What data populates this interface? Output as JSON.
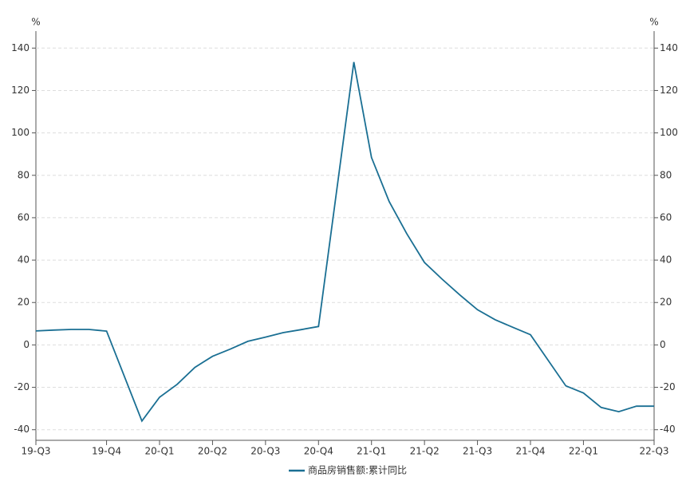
{
  "chart_data": {
    "type": "line",
    "y_label": "%",
    "y2_label": "%",
    "x": [
      0,
      1,
      2,
      3,
      4,
      6,
      7,
      8,
      9,
      10,
      11,
      12,
      13,
      14,
      15,
      16,
      18,
      19,
      20,
      21,
      22,
      23,
      24,
      25,
      26,
      27,
      28,
      30,
      31,
      32,
      33,
      34,
      35
    ],
    "series": [
      {
        "name": "商品房销售额:累计同比",
        "color": "#1a6f93",
        "values": [
          6.6,
          7.0,
          7.3,
          7.3,
          6.5,
          -35.9,
          -24.7,
          -18.6,
          -10.6,
          -5.4,
          -2.0,
          1.7,
          3.7,
          5.8,
          7.2,
          8.7,
          133.4,
          88.4,
          67.6,
          52.4,
          38.9,
          31.0,
          23.6,
          16.6,
          11.9,
          8.3,
          4.8,
          -19.3,
          -22.7,
          -29.5,
          -31.5,
          -28.9,
          -28.9
        ]
      }
    ],
    "xlim": [
      0,
      35
    ],
    "xticks": [
      {
        "value": 0,
        "label": "19-Q3"
      },
      {
        "value": 4,
        "label": "19-Q4"
      },
      {
        "value": 7,
        "label": "20-Q1"
      },
      {
        "value": 10,
        "label": "20-Q2"
      },
      {
        "value": 13,
        "label": "20-Q3"
      },
      {
        "value": 16,
        "label": "20-Q4"
      },
      {
        "value": 19,
        "label": "21-Q1"
      },
      {
        "value": 22,
        "label": "21-Q2"
      },
      {
        "value": 25,
        "label": "21-Q3"
      },
      {
        "value": 28,
        "label": "21-Q4"
      },
      {
        "value": 31,
        "label": "22-Q1"
      },
      {
        "value": 35,
        "label": "22-Q3"
      }
    ],
    "ylim": [
      -45,
      145
    ],
    "yticks": [
      -40,
      -20,
      0,
      20,
      40,
      60,
      80,
      100,
      120,
      140
    ],
    "y2lim": [
      -45,
      145
    ],
    "y2ticks": [
      -40,
      -20,
      0,
      20,
      40,
      60,
      80,
      100,
      120,
      140
    ],
    "grid": true
  }
}
